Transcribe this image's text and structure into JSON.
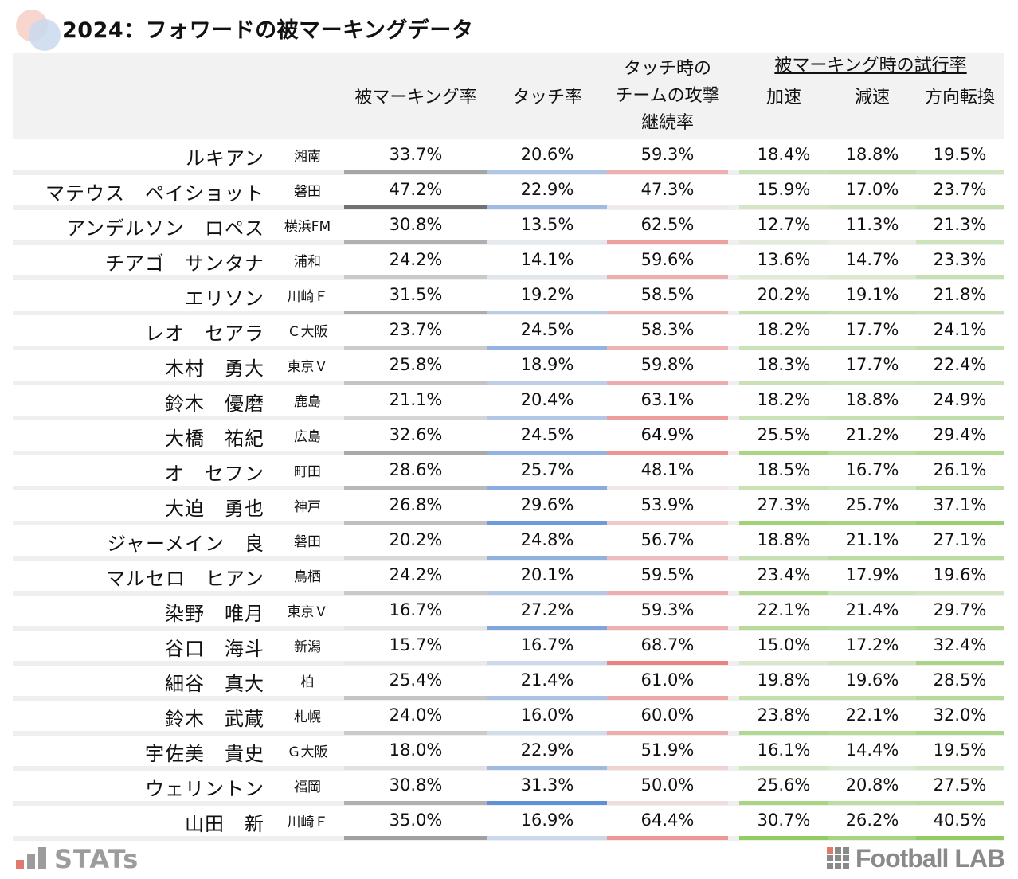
{
  "title": "2024：フォワードの被マーキングデータ",
  "headers": {
    "marking_rate": "被マーキング率",
    "touch_rate": "タッチ率",
    "attack_continue": [
      "タッチ時の",
      "チームの攻撃",
      "継続率"
    ],
    "group_title": "被マーキング時の試行率",
    "accel": "加速",
    "decel": "減速",
    "direction": "方向転換"
  },
  "colors": {
    "marking": "#6e6e6e",
    "touch": "#5b8ed6",
    "attack": "#ec7b7b",
    "trial": "#8fcb5e",
    "header_bg": "#f2f2f2"
  },
  "chart_data": {
    "type": "table",
    "columns": [
      "被マーキング率",
      "タッチ率",
      "タッチ時のチームの攻撃継続率",
      "加速",
      "減速",
      "方向転換"
    ],
    "rows": [
      {
        "name": "ルキアン",
        "team": "湘南",
        "marking": "33.7%",
        "touch": "20.6%",
        "attack": "59.3%",
        "accel": "18.4%",
        "decel": "18.8%",
        "dir": "19.5%"
      },
      {
        "name": "マテウス　ペイショット",
        "team": "磐田",
        "marking": "47.2%",
        "touch": "22.9%",
        "attack": "47.3%",
        "accel": "15.9%",
        "decel": "17.0%",
        "dir": "23.7%"
      },
      {
        "name": "アンデルソン　ロペス",
        "team": "横浜FM",
        "marking": "30.8%",
        "touch": "13.5%",
        "attack": "62.5%",
        "accel": "12.7%",
        "decel": "11.3%",
        "dir": "21.3%"
      },
      {
        "name": "チアゴ　サンタナ",
        "team": "浦和",
        "marking": "24.2%",
        "touch": "14.1%",
        "attack": "59.6%",
        "accel": "13.6%",
        "decel": "14.7%",
        "dir": "23.3%"
      },
      {
        "name": "エリソン",
        "team": "川崎Ｆ",
        "marking": "31.5%",
        "touch": "19.2%",
        "attack": "58.5%",
        "accel": "20.2%",
        "decel": "19.1%",
        "dir": "21.8%"
      },
      {
        "name": "レオ　セアラ",
        "team": "Ｃ大阪",
        "marking": "23.7%",
        "touch": "24.5%",
        "attack": "58.3%",
        "accel": "18.2%",
        "decel": "17.7%",
        "dir": "24.1%"
      },
      {
        "name": "木村　勇大",
        "team": "東京Ｖ",
        "marking": "25.8%",
        "touch": "18.9%",
        "attack": "59.8%",
        "accel": "18.3%",
        "decel": "17.7%",
        "dir": "22.4%"
      },
      {
        "name": "鈴木　優磨",
        "team": "鹿島",
        "marking": "21.1%",
        "touch": "20.4%",
        "attack": "63.1%",
        "accel": "18.2%",
        "decel": "18.8%",
        "dir": "24.9%"
      },
      {
        "name": "大橋　祐紀",
        "team": "広島",
        "marking": "32.6%",
        "touch": "24.5%",
        "attack": "64.9%",
        "accel": "25.5%",
        "decel": "21.2%",
        "dir": "29.4%"
      },
      {
        "name": "オ　セフン",
        "team": "町田",
        "marking": "28.6%",
        "touch": "25.7%",
        "attack": "48.1%",
        "accel": "18.5%",
        "decel": "16.7%",
        "dir": "26.1%"
      },
      {
        "name": "大迫　勇也",
        "team": "神戸",
        "marking": "26.8%",
        "touch": "29.6%",
        "attack": "53.9%",
        "accel": "27.3%",
        "decel": "25.7%",
        "dir": "37.1%"
      },
      {
        "name": "ジャーメイン　良",
        "team": "磐田",
        "marking": "20.2%",
        "touch": "24.8%",
        "attack": "56.7%",
        "accel": "18.8%",
        "decel": "21.1%",
        "dir": "27.1%"
      },
      {
        "name": "マルセロ　ヒアン",
        "team": "鳥栖",
        "marking": "24.2%",
        "touch": "20.1%",
        "attack": "59.5%",
        "accel": "23.4%",
        "decel": "17.9%",
        "dir": "19.6%"
      },
      {
        "name": "染野　唯月",
        "team": "東京Ｖ",
        "marking": "16.7%",
        "touch": "27.2%",
        "attack": "59.3%",
        "accel": "22.1%",
        "decel": "21.4%",
        "dir": "29.7%"
      },
      {
        "name": "谷口　海斗",
        "team": "新潟",
        "marking": "15.7%",
        "touch": "16.7%",
        "attack": "68.7%",
        "accel": "15.0%",
        "decel": "17.2%",
        "dir": "32.4%"
      },
      {
        "name": "細谷　真大",
        "team": "柏",
        "marking": "25.4%",
        "touch": "21.4%",
        "attack": "61.0%",
        "accel": "19.8%",
        "decel": "19.6%",
        "dir": "28.5%"
      },
      {
        "name": "鈴木　武蔵",
        "team": "札幌",
        "marking": "24.0%",
        "touch": "16.0%",
        "attack": "60.0%",
        "accel": "23.8%",
        "decel": "22.1%",
        "dir": "32.0%"
      },
      {
        "name": "宇佐美　貴史",
        "team": "Ｇ大阪",
        "marking": "18.0%",
        "touch": "22.9%",
        "attack": "51.9%",
        "accel": "16.1%",
        "decel": "14.4%",
        "dir": "19.5%"
      },
      {
        "name": "ウェリントン",
        "team": "福岡",
        "marking": "30.8%",
        "touch": "31.3%",
        "attack": "50.0%",
        "accel": "25.6%",
        "decel": "20.8%",
        "dir": "27.5%"
      },
      {
        "name": "山田　新",
        "team": "川崎Ｆ",
        "marking": "35.0%",
        "touch": "16.9%",
        "attack": "64.4%",
        "accel": "30.7%",
        "decel": "26.2%",
        "dir": "40.5%"
      }
    ]
  },
  "footer": {
    "stats_logo": "STATs",
    "football_lab_logo": "Football LAB"
  }
}
